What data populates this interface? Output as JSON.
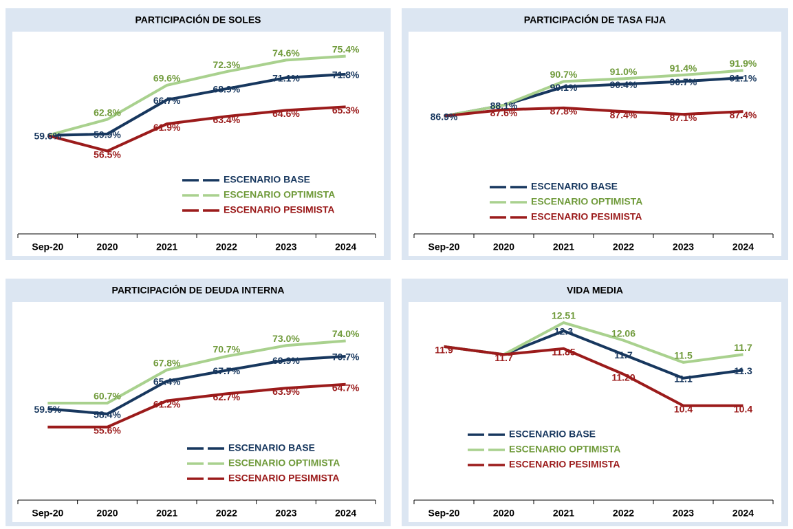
{
  "chart_data": [
    {
      "type": "line",
      "title": "PARTICIPACIÓN DE SOLES",
      "categories": [
        "Sep-20",
        "2020",
        "2021",
        "2022",
        "2023",
        "2024"
      ],
      "ylim": [
        40,
        80
      ],
      "series": [
        {
          "name": "ESCENARIO BASE",
          "color": "#17375e",
          "label_color": "#17375e",
          "values": [
            59.6,
            59.9,
            66.7,
            68.9,
            71.1,
            71.8
          ],
          "value_labels": [
            "59.6%",
            "59.9%",
            "66.7%",
            "68.9%",
            "71.1%",
            "71.8%"
          ]
        },
        {
          "name": "ESCENARIO OPTIMISTA",
          "color": "#a9d18e",
          "label_color": "#6f9a3a",
          "values": [
            59.6,
            62.8,
            69.6,
            72.3,
            74.6,
            75.4
          ],
          "value_labels": [
            null,
            "62.8%",
            "69.6%",
            "72.3%",
            "74.6%",
            "75.4%"
          ]
        },
        {
          "name": "ESCENARIO PESIMISTA",
          "color": "#9b1b1b",
          "label_color": "#9b1b1b",
          "values": [
            59.6,
            56.5,
            61.9,
            63.4,
            64.6,
            65.3
          ],
          "value_labels": [
            null,
            "56.5%",
            "61.9%",
            "63.4%",
            "64.6%",
            "65.3%"
          ]
        }
      ]
    },
    {
      "type": "line",
      "title": "PARTICIPACIÓN DE TASA FIJA",
      "categories": [
        "Sep-20",
        "2020",
        "2021",
        "2022",
        "2023",
        "2024"
      ],
      "ylim": [
        74,
        96
      ],
      "series": [
        {
          "name": "ESCENARIO BASE",
          "color": "#17375e",
          "label_color": "#17375e",
          "values": [
            86.9,
            88.1,
            90.1,
            90.4,
            90.7,
            91.1
          ],
          "value_labels": [
            "86.9%",
            "88.1%",
            "90.1%",
            "90.4%",
            "90.7%",
            "91.1%"
          ]
        },
        {
          "name": "ESCENARIO OPTIMISTA",
          "color": "#a9d18e",
          "label_color": "#6f9a3a",
          "values": [
            86.9,
            88.1,
            90.7,
            91.0,
            91.4,
            91.9
          ],
          "value_labels": [
            null,
            null,
            "90.7%",
            "91.0%",
            "91.4%",
            "91.9%"
          ]
        },
        {
          "name": "ESCENARIO PESIMISTA",
          "color": "#9b1b1b",
          "label_color": "#9b1b1b",
          "values": [
            86.9,
            87.6,
            87.8,
            87.4,
            87.1,
            87.4
          ],
          "value_labels": [
            null,
            "87.6%",
            "87.8%",
            "87.4%",
            "87.1%",
            "87.4%"
          ]
        }
      ]
    },
    {
      "type": "line",
      "title": "PARTICIPACIÓN DE DEUDA INTERNA",
      "categories": [
        "Sep-20",
        "2020",
        "2021",
        "2022",
        "2023",
        "2024"
      ],
      "ylim": [
        40,
        82
      ],
      "series": [
        {
          "name": "ESCENARIO BASE",
          "color": "#17375e",
          "label_color": "#17375e",
          "values": [
            59.5,
            58.4,
            65.4,
            67.7,
            69.9,
            70.7
          ],
          "value_labels": [
            "59.5%",
            "58.4%",
            "65.4%",
            "67.7%",
            "69.9%",
            "70.7%"
          ]
        },
        {
          "name": "ESCENARIO OPTIMISTA",
          "color": "#a9d18e",
          "label_color": "#6f9a3a",
          "values": [
            60.7,
            60.7,
            67.8,
            70.7,
            73.0,
            74.0
          ],
          "value_labels": [
            null,
            "60.7%",
            "67.8%",
            "70.7%",
            "73.0%",
            "74.0%"
          ]
        },
        {
          "name": "ESCENARIO PESIMISTA",
          "color": "#9b1b1b",
          "label_color": "#9b1b1b",
          "values": [
            55.6,
            55.6,
            61.2,
            62.7,
            63.9,
            64.7
          ],
          "value_labels": [
            null,
            "55.6%",
            "61.2%",
            "62.7%",
            "63.9%",
            "64.7%"
          ]
        }
      ]
    },
    {
      "type": "line",
      "title": "VIDA MEDIA",
      "categories": [
        "Sep-20",
        "2020",
        "2021",
        "2022",
        "2023",
        "2024"
      ],
      "ylim": [
        8,
        13
      ],
      "series": [
        {
          "name": "ESCENARIO BASE",
          "color": "#17375e",
          "label_color": "#17375e",
          "values": [
            11.9,
            11.7,
            12.3,
            11.7,
            11.1,
            11.3
          ],
          "value_labels": [
            null,
            null,
            "12.3",
            "11.7",
            "11.1",
            "11.3"
          ]
        },
        {
          "name": "ESCENARIO OPTIMISTA",
          "color": "#a9d18e",
          "label_color": "#6f9a3a",
          "values": [
            11.9,
            11.7,
            12.51,
            12.06,
            11.5,
            11.7
          ],
          "value_labels": [
            null,
            null,
            "12.51",
            "12.06",
            "11.5",
            "11.7"
          ]
        },
        {
          "name": "ESCENARIO PESIMISTA",
          "color": "#9b1b1b",
          "label_color": "#9b1b1b",
          "values": [
            11.9,
            11.7,
            11.85,
            11.2,
            10.4,
            10.4
          ],
          "value_labels": [
            "11.9",
            "11.7",
            "11.85",
            "11.20",
            "10.4",
            "10.4"
          ]
        }
      ]
    }
  ]
}
